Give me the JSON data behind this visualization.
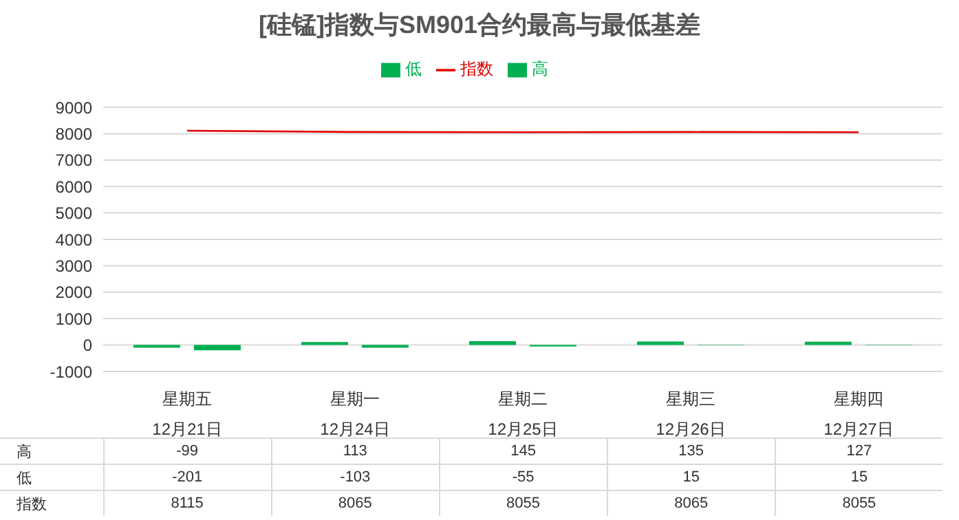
{
  "chart_data": {
    "type": "bar",
    "title": "[硅锰]指数与SM901合约最高与最低基差",
    "categories": [
      "星期五\n12月21日",
      "星期一\n12月24日",
      "星期二\n12月25日",
      "星期三\n12月26日",
      "星期四\n12月27日"
    ],
    "series": [
      {
        "name": "高",
        "color": "#00b050",
        "values": [
          -99,
          113,
          145,
          135,
          127
        ]
      },
      {
        "name": "低",
        "color": "#00b050",
        "values": [
          -201,
          -103,
          -55,
          15,
          15
        ]
      },
      {
        "name": "指数",
        "type": "line",
        "color": "#e00000",
        "values": [
          8115,
          8065,
          8055,
          8065,
          8055
        ]
      }
    ],
    "ylim": [
      -1000,
      9000
    ],
    "yticks": [
      -1000,
      0,
      1000,
      2000,
      3000,
      4000,
      5000,
      6000,
      7000,
      8000,
      9000
    ],
    "grid": "y",
    "legend": "top",
    "data_labels": true
  }
}
